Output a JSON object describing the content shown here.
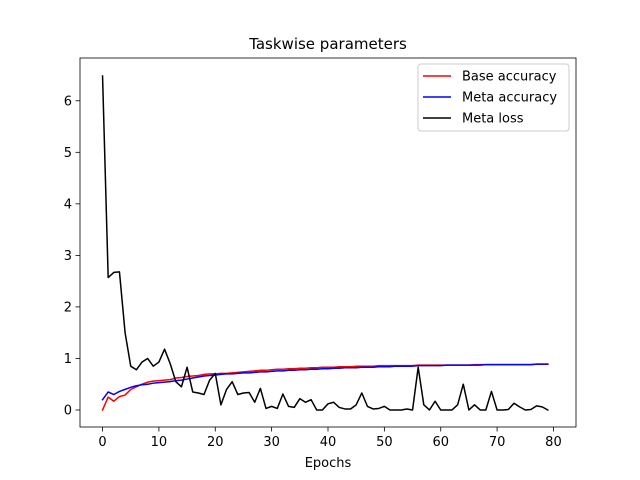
{
  "chart_data": {
    "type": "line",
    "title": "Taskwise parameters",
    "xlabel": "Epochs",
    "ylabel": "",
    "xlim": [
      -4,
      84
    ],
    "ylim": [
      -0.33,
      6.83
    ],
    "xticks": [
      0,
      10,
      20,
      30,
      40,
      50,
      60,
      70,
      80
    ],
    "yticks": [
      0,
      1,
      2,
      3,
      4,
      5,
      6
    ],
    "legend_position": "top-right",
    "series": [
      {
        "name": "Base accuracy",
        "color": "#ff0000",
        "x": [
          0,
          1,
          2,
          3,
          4,
          5,
          6,
          7,
          8,
          9,
          10,
          11,
          12,
          13,
          14,
          15,
          16,
          17,
          18,
          19,
          20,
          21,
          22,
          23,
          24,
          25,
          26,
          27,
          28,
          29,
          30,
          31,
          32,
          33,
          34,
          35,
          36,
          37,
          38,
          39,
          40,
          41,
          42,
          43,
          44,
          45,
          46,
          47,
          48,
          49,
          50,
          51,
          52,
          53,
          54,
          55,
          56,
          57,
          58,
          59,
          60,
          61,
          62,
          63,
          64,
          65,
          66,
          67,
          68,
          69,
          70,
          71,
          72,
          73,
          74,
          75,
          76,
          77,
          78,
          79
        ],
        "values": [
          0.0,
          0.25,
          0.17,
          0.26,
          0.29,
          0.4,
          0.45,
          0.5,
          0.54,
          0.56,
          0.57,
          0.58,
          0.59,
          0.62,
          0.63,
          0.65,
          0.66,
          0.67,
          0.69,
          0.7,
          0.7,
          0.71,
          0.71,
          0.72,
          0.73,
          0.74,
          0.75,
          0.76,
          0.77,
          0.77,
          0.78,
          0.79,
          0.79,
          0.8,
          0.8,
          0.81,
          0.81,
          0.82,
          0.82,
          0.83,
          0.83,
          0.83,
          0.84,
          0.84,
          0.84,
          0.85,
          0.85,
          0.85,
          0.85,
          0.86,
          0.86,
          0.86,
          0.86,
          0.86,
          0.86,
          0.86,
          0.87,
          0.87,
          0.87,
          0.87,
          0.87,
          0.87,
          0.87,
          0.87,
          0.87,
          0.87,
          0.88,
          0.88,
          0.88,
          0.88,
          0.88,
          0.88,
          0.88,
          0.88,
          0.88,
          0.88,
          0.88,
          0.89,
          0.89,
          0.89
        ]
      },
      {
        "name": "Meta accuracy",
        "color": "#0000ff",
        "x": [
          0,
          1,
          2,
          3,
          4,
          5,
          6,
          7,
          8,
          9,
          10,
          11,
          12,
          13,
          14,
          15,
          16,
          17,
          18,
          19,
          20,
          21,
          22,
          23,
          24,
          25,
          26,
          27,
          28,
          29,
          30,
          31,
          32,
          33,
          34,
          35,
          36,
          37,
          38,
          39,
          40,
          41,
          42,
          43,
          44,
          45,
          46,
          47,
          48,
          49,
          50,
          51,
          52,
          53,
          54,
          55,
          56,
          57,
          58,
          59,
          60,
          61,
          62,
          63,
          64,
          65,
          66,
          67,
          68,
          69,
          70,
          71,
          72,
          73,
          74,
          75,
          76,
          77,
          78,
          79
        ],
        "values": [
          0.2,
          0.35,
          0.3,
          0.36,
          0.4,
          0.44,
          0.47,
          0.49,
          0.5,
          0.52,
          0.53,
          0.54,
          0.55,
          0.57,
          0.58,
          0.6,
          0.62,
          0.64,
          0.66,
          0.67,
          0.68,
          0.69,
          0.7,
          0.7,
          0.71,
          0.72,
          0.72,
          0.73,
          0.74,
          0.74,
          0.75,
          0.76,
          0.76,
          0.77,
          0.77,
          0.78,
          0.78,
          0.79,
          0.79,
          0.8,
          0.8,
          0.81,
          0.81,
          0.82,
          0.82,
          0.82,
          0.83,
          0.83,
          0.83,
          0.84,
          0.84,
          0.84,
          0.85,
          0.85,
          0.85,
          0.85,
          0.86,
          0.86,
          0.86,
          0.86,
          0.86,
          0.87,
          0.87,
          0.87,
          0.87,
          0.87,
          0.87,
          0.87,
          0.88,
          0.88,
          0.88,
          0.88,
          0.88,
          0.88,
          0.88,
          0.88,
          0.88,
          0.89,
          0.89,
          0.89
        ]
      },
      {
        "name": "Meta loss",
        "color": "#000000",
        "x": [
          0,
          1,
          2,
          3,
          4,
          5,
          6,
          7,
          8,
          9,
          10,
          11,
          12,
          13,
          14,
          15,
          16,
          17,
          18,
          19,
          20,
          21,
          22,
          23,
          24,
          25,
          26,
          27,
          28,
          29,
          30,
          31,
          32,
          33,
          34,
          35,
          36,
          37,
          38,
          39,
          40,
          41,
          42,
          43,
          44,
          45,
          46,
          47,
          48,
          49,
          50,
          51,
          52,
          53,
          54,
          55,
          56,
          57,
          58,
          59,
          60,
          61,
          62,
          63,
          64,
          65,
          66,
          67,
          68,
          69,
          70,
          71,
          72,
          73,
          74,
          75,
          76,
          77,
          78,
          79
        ],
        "values": [
          6.48,
          2.57,
          2.67,
          2.68,
          1.5,
          0.85,
          0.78,
          0.93,
          1.0,
          0.85,
          0.93,
          1.18,
          0.9,
          0.55,
          0.45,
          0.83,
          0.35,
          0.33,
          0.3,
          0.58,
          0.71,
          0.1,
          0.4,
          0.55,
          0.3,
          0.33,
          0.34,
          0.15,
          0.42,
          0.03,
          0.07,
          0.03,
          0.31,
          0.07,
          0.05,
          0.22,
          0.15,
          0.2,
          0.0,
          0.0,
          0.12,
          0.15,
          0.05,
          0.02,
          0.02,
          0.1,
          0.33,
          0.07,
          0.02,
          0.03,
          0.07,
          0.0,
          0.0,
          0.0,
          0.02,
          0.0,
          0.83,
          0.1,
          0.0,
          0.17,
          0.0,
          0.0,
          0.0,
          0.1,
          0.5,
          0.0,
          0.1,
          0.0,
          0.0,
          0.36,
          0.0,
          0.0,
          0.01,
          0.13,
          0.06,
          0.0,
          0.01,
          0.08,
          0.06,
          0.0
        ]
      }
    ]
  }
}
